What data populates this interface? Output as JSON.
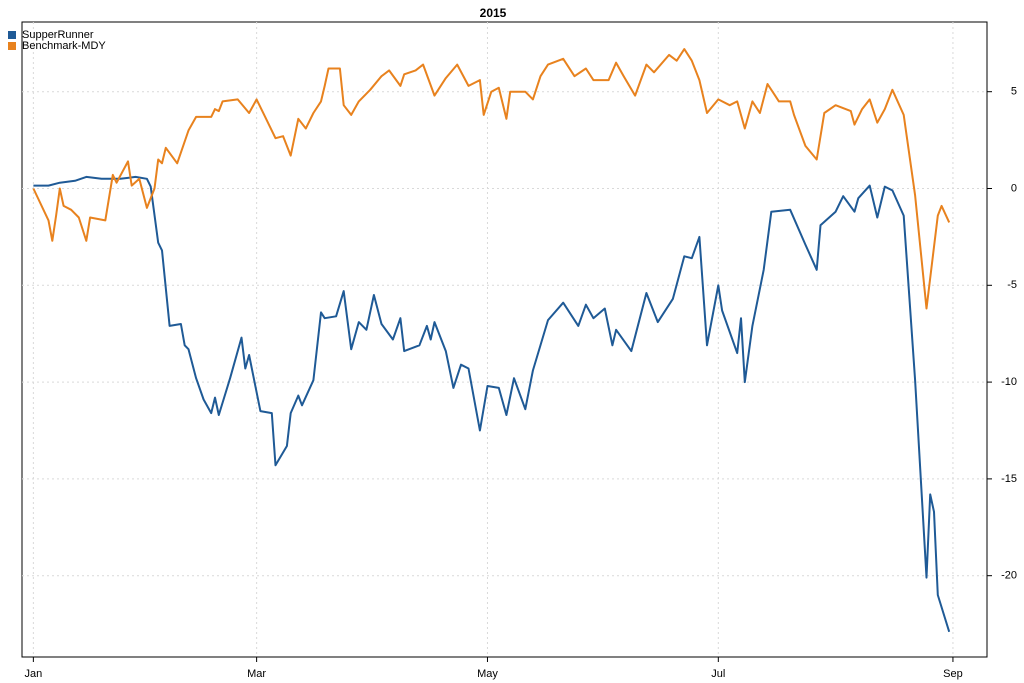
{
  "chart_data": {
    "type": "line",
    "title": "2015",
    "xlim": [
      -3,
      252
    ],
    "xticks": [
      {
        "value": 0,
        "label": "Jan"
      },
      {
        "value": 59,
        "label": "Mar"
      },
      {
        "value": 120,
        "label": "May"
      },
      {
        "value": 181,
        "label": "Jul"
      },
      {
        "value": 243,
        "label": "Sep"
      }
    ],
    "ylim": [
      -24.2,
      8.6
    ],
    "yticks": [
      5,
      0,
      -5,
      -10,
      -15,
      -20
    ],
    "grid": true,
    "legend": "top-left",
    "series": [
      {
        "name": "SupperRunner",
        "color": "#1f5a96",
        "x": [
          0,
          4,
          7,
          11,
          14,
          18,
          20,
          23,
          27,
          30,
          31,
          33,
          34,
          36,
          39,
          40,
          41,
          43,
          45,
          47,
          48,
          49,
          52,
          55,
          56,
          57,
          60,
          63,
          64,
          67,
          68,
          70,
          71,
          74,
          76,
          77,
          80,
          82,
          84,
          86,
          88,
          90,
          92,
          95,
          97,
          98,
          102,
          104,
          105,
          106,
          109,
          111,
          113,
          115,
          118,
          120,
          123,
          125,
          127,
          130,
          132,
          136,
          140,
          144,
          146,
          148,
          151,
          153,
          154,
          158,
          162,
          165,
          169,
          172,
          174,
          176,
          178,
          181,
          182,
          186,
          187,
          188,
          190,
          193,
          195,
          200,
          204,
          207,
          208,
          212,
          214,
          217,
          218,
          221,
          223,
          225,
          227,
          230,
          233,
          236,
          237,
          238,
          239,
          242
        ],
        "values": [
          0.15,
          0.15,
          0.3,
          0.4,
          0.6,
          0.5,
          0.5,
          0.5,
          0.6,
          0.5,
          0.1,
          -2.8,
          -3.2,
          -7.1,
          -7.0,
          -8.1,
          -8.3,
          -9.8,
          -10.9,
          -11.6,
          -10.8,
          -11.7,
          -9.8,
          -7.7,
          -9.3,
          -8.6,
          -11.5,
          -11.6,
          -14.3,
          -13.3,
          -11.6,
          -10.7,
          -11.2,
          -9.9,
          -6.4,
          -6.7,
          -6.6,
          -5.3,
          -8.3,
          -6.9,
          -7.3,
          -5.5,
          -7.0,
          -7.8,
          -6.7,
          -8.4,
          -8.1,
          -7.1,
          -7.8,
          -6.9,
          -8.4,
          -10.3,
          -9.1,
          -9.3,
          -12.5,
          -10.2,
          -10.3,
          -11.7,
          -9.8,
          -11.4,
          -9.4,
          -6.8,
          -5.9,
          -7.1,
          -6.0,
          -6.7,
          -6.2,
          -8.1,
          -7.3,
          -8.4,
          -5.4,
          -6.9,
          -5.7,
          -3.5,
          -3.6,
          -2.5,
          -8.1,
          -5.0,
          -6.3,
          -8.5,
          -6.7,
          -10.0,
          -7.1,
          -4.2,
          -1.2,
          -1.1,
          -2.9,
          -4.2,
          -1.9,
          -1.2,
          -0.4,
          -1.2,
          -0.5,
          0.15,
          -1.5,
          0.1,
          -0.1,
          -1.4,
          -9.9,
          -20.1,
          -15.8,
          -16.7,
          -21.0,
          -22.9
        ]
      },
      {
        "name": "Benchmark-MDY",
        "color": "#e8821e",
        "x": [
          0,
          4,
          5,
          6,
          7,
          8,
          10,
          12,
          14,
          15,
          19,
          21,
          22,
          25,
          26,
          28,
          30,
          32,
          33,
          34,
          35,
          38,
          41,
          43,
          47,
          48,
          49,
          50,
          54,
          57,
          59,
          61,
          64,
          66,
          68,
          70,
          72,
          74,
          76,
          77,
          78,
          81,
          82,
          84,
          86,
          89,
          92,
          94,
          97,
          98,
          101,
          103,
          106,
          109,
          112,
          115,
          118,
          119,
          121,
          123,
          125,
          126,
          130,
          132,
          134,
          136,
          140,
          143,
          146,
          148,
          152,
          154,
          156,
          159,
          162,
          164,
          168,
          170,
          172,
          174,
          176,
          178,
          181,
          184,
          186,
          188,
          190,
          192,
          194,
          196,
          197,
          200,
          201,
          204,
          207,
          209,
          212,
          216,
          217,
          219,
          221,
          223,
          225,
          227,
          230,
          233,
          236,
          239,
          240,
          242
        ],
        "values": [
          0,
          -1.65,
          -2.7,
          -1.4,
          0,
          -0.9,
          -1.1,
          -1.5,
          -2.7,
          -1.5,
          -1.65,
          0.7,
          0.3,
          1.4,
          0.15,
          0.5,
          -1.0,
          0,
          1.5,
          1.3,
          2.1,
          1.3,
          3.0,
          3.7,
          3.7,
          4.1,
          4.0,
          4.5,
          4.6,
          3.9,
          4.6,
          3.8,
          2.6,
          2.7,
          1.7,
          3.6,
          3.1,
          3.9,
          4.5,
          5.3,
          6.2,
          6.2,
          4.3,
          3.8,
          4.5,
          5.1,
          5.8,
          6.1,
          5.3,
          5.9,
          6.1,
          6.4,
          4.8,
          5.7,
          6.4,
          5.3,
          5.6,
          3.8,
          5.0,
          5.2,
          3.6,
          5.0,
          5.0,
          4.6,
          5.8,
          6.4,
          6.7,
          5.8,
          6.2,
          5.6,
          5.6,
          6.5,
          5.8,
          4.8,
          6.4,
          6.0,
          6.9,
          6.6,
          7.2,
          6.6,
          5.6,
          3.9,
          4.6,
          4.3,
          4.5,
          3.1,
          4.5,
          3.9,
          5.4,
          4.8,
          4.5,
          4.5,
          3.8,
          2.2,
          1.5,
          3.9,
          4.3,
          4.0,
          3.3,
          4.1,
          4.6,
          3.4,
          4.1,
          5.1,
          3.8,
          -0.35,
          -6.2,
          -1.4,
          -0.9,
          -1.75
        ]
      }
    ]
  }
}
